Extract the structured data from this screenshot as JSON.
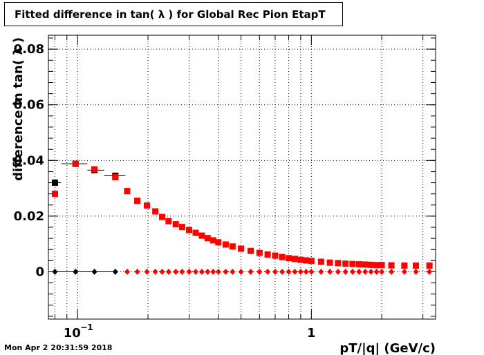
{
  "chart_data": {
    "type": "scatter",
    "title": "Fitted difference in tan( λ ) for Global Rec Pion EtapT",
    "xlabel": "pT/|q| (GeV/c)",
    "ylabel": "difference in tan( λ )",
    "x_scale": "log",
    "xlim": [
      0.075,
      3.4
    ],
    "ylim": [
      -0.017,
      0.085
    ],
    "grid": true,
    "y_ticks": [
      {
        "value": 0,
        "label": "0"
      },
      {
        "value": 0.02,
        "label": "0.02"
      },
      {
        "value": 0.04,
        "label": "0.04"
      },
      {
        "value": 0.06,
        "label": "0.06"
      },
      {
        "value": 0.08,
        "label": "0.08"
      }
    ],
    "x_ticks": [
      {
        "value": 0.1,
        "label": "10",
        "exponent": "−1"
      },
      {
        "value": 1,
        "label": "1",
        "exponent": ""
      }
    ],
    "series": [
      {
        "color": "#000000",
        "marker": "square",
        "points": [
          [
            0.08,
            0.032
          ],
          [
            0.098,
            0.0388
          ],
          [
            0.118,
            0.0365
          ],
          [
            0.145,
            0.0345
          ]
        ],
        "xerr_bins": [
          [
            0.075,
            0.085
          ],
          [
            0.085,
            0.11
          ],
          [
            0.11,
            0.13
          ],
          [
            0.13,
            0.16
          ]
        ]
      },
      {
        "color": "#ff0000",
        "marker": "square",
        "points": [
          [
            0.08,
            0.028
          ],
          [
            0.098,
            0.0388
          ],
          [
            0.118,
            0.0368
          ],
          [
            0.145,
            0.034
          ],
          [
            0.163,
            0.029
          ],
          [
            0.18,
            0.0255
          ],
          [
            0.198,
            0.0238
          ],
          [
            0.215,
            0.0217
          ],
          [
            0.23,
            0.0197
          ],
          [
            0.245,
            0.0182
          ],
          [
            0.263,
            0.0171
          ],
          [
            0.28,
            0.0161
          ],
          [
            0.3,
            0.015
          ],
          [
            0.32,
            0.014
          ],
          [
            0.34,
            0.013
          ],
          [
            0.36,
            0.0121
          ],
          [
            0.38,
            0.0113
          ],
          [
            0.4,
            0.0106
          ],
          [
            0.43,
            0.0098
          ],
          [
            0.46,
            0.0091
          ],
          [
            0.5,
            0.0083
          ],
          [
            0.55,
            0.0075
          ],
          [
            0.6,
            0.0068
          ],
          [
            0.65,
            0.0062
          ],
          [
            0.7,
            0.0058
          ],
          [
            0.75,
            0.0053
          ],
          [
            0.8,
            0.0049
          ],
          [
            0.85,
            0.0046
          ],
          [
            0.9,
            0.0043
          ],
          [
            0.95,
            0.0041
          ],
          [
            1.0,
            0.0039
          ],
          [
            1.1,
            0.0036
          ],
          [
            1.2,
            0.0033
          ],
          [
            1.3,
            0.0031
          ],
          [
            1.4,
            0.0029
          ],
          [
            1.5,
            0.0028
          ],
          [
            1.6,
            0.0027
          ],
          [
            1.7,
            0.0026
          ],
          [
            1.8,
            0.0025
          ],
          [
            1.9,
            0.0024
          ],
          [
            2.0,
            0.0024
          ],
          [
            2.2,
            0.0023
          ],
          [
            2.5,
            0.0022
          ],
          [
            2.8,
            0.0022
          ],
          [
            3.2,
            0.0022
          ]
        ]
      },
      {
        "color": "#000000",
        "marker": "diamond",
        "points": [
          [
            0.08,
            0.0
          ],
          [
            0.098,
            0.0
          ],
          [
            0.118,
            0.0
          ],
          [
            0.145,
            0.0
          ]
        ]
      },
      {
        "color": "#ff0000",
        "marker": "diamond",
        "points": [
          [
            0.163,
            0.0
          ],
          [
            0.18,
            0.0
          ],
          [
            0.198,
            0.0
          ],
          [
            0.215,
            0.0
          ],
          [
            0.23,
            0.0
          ],
          [
            0.245,
            0.0
          ],
          [
            0.263,
            0.0
          ],
          [
            0.28,
            0.0
          ],
          [
            0.3,
            0.0
          ],
          [
            0.32,
            0.0
          ],
          [
            0.34,
            0.0
          ],
          [
            0.36,
            0.0
          ],
          [
            0.38,
            0.0
          ],
          [
            0.4,
            0.0
          ],
          [
            0.43,
            0.0
          ],
          [
            0.46,
            0.0
          ],
          [
            0.5,
            0.0
          ],
          [
            0.55,
            0.0
          ],
          [
            0.6,
            0.0
          ],
          [
            0.65,
            0.0
          ],
          [
            0.7,
            0.0
          ],
          [
            0.75,
            0.0
          ],
          [
            0.8,
            0.0
          ],
          [
            0.85,
            0.0
          ],
          [
            0.9,
            0.0
          ],
          [
            0.95,
            0.0
          ],
          [
            1.0,
            0.0
          ],
          [
            1.1,
            0.0
          ],
          [
            1.2,
            0.0
          ],
          [
            1.3,
            0.0
          ],
          [
            1.4,
            0.0
          ],
          [
            1.5,
            0.0
          ],
          [
            1.6,
            0.0
          ],
          [
            1.7,
            0.0
          ],
          [
            1.8,
            0.0
          ],
          [
            1.9,
            0.0
          ],
          [
            2.0,
            0.0
          ],
          [
            2.2,
            0.0
          ],
          [
            2.5,
            0.0
          ],
          [
            2.8,
            0.0
          ],
          [
            3.2,
            0.0
          ]
        ]
      }
    ]
  },
  "footer": {
    "timestamp": "Mon Apr  2 20:31:59 2018"
  }
}
